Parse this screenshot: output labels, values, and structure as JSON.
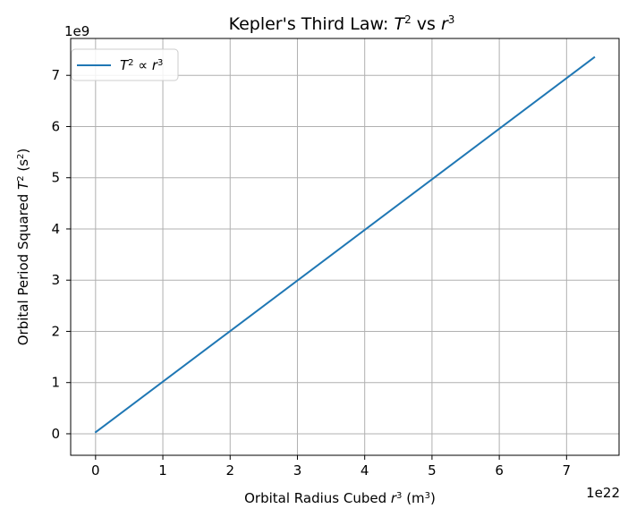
{
  "chart_data": {
    "type": "line",
    "title_main": "Kepler's Third Law: ",
    "title_T": "T",
    "title_sup2": "2",
    "title_vs": " vs ",
    "title_r": "r",
    "title_sup3": "3",
    "xlabel_prefix": "Orbital Radius Cubed ",
    "xlabel_var": "r",
    "xlabel_sup": "3",
    "xlabel_unit_open": " (m",
    "xlabel_unit_sup": "3",
    "xlabel_unit_close": ")",
    "ylabel_prefix": "Orbital Period Squared ",
    "ylabel_var": "T",
    "ylabel_sup": "2",
    "ylabel_unit_open": " (s",
    "ylabel_unit_sup": "2",
    "ylabel_unit_close": ")",
    "x_offset_text": "1e22",
    "y_offset_text": "1e9",
    "xticks": [
      0,
      1,
      2,
      3,
      4,
      5,
      6,
      7
    ],
    "yticks": [
      0,
      1,
      2,
      3,
      4,
      5,
      6,
      7
    ],
    "xlim": [
      -0.37,
      7.78
    ],
    "ylim": [
      -0.42,
      7.72
    ],
    "grid": true,
    "legend_location": "upper left",
    "series": [
      {
        "name_var1": "T",
        "name_sup1": "2",
        "name_prop": " ∝ ",
        "name_var2": "r",
        "name_sup2": "3",
        "color": "#1f77b4",
        "x": [
          0.0033,
          7.41
        ],
        "y": [
          0.0333,
          7.35
        ]
      }
    ]
  }
}
